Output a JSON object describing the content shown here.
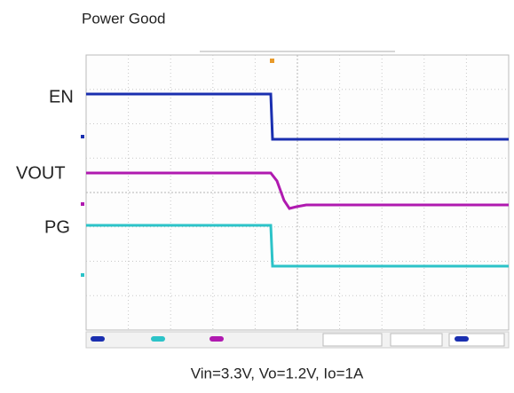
{
  "header": {
    "title": "Power Good"
  },
  "channels": [
    {
      "label": "EN"
    },
    {
      "label": "VOUT"
    },
    {
      "label": "PG"
    }
  ],
  "caption": "Vin=3.3V, Vo=1.2V, Io=1A"
}
